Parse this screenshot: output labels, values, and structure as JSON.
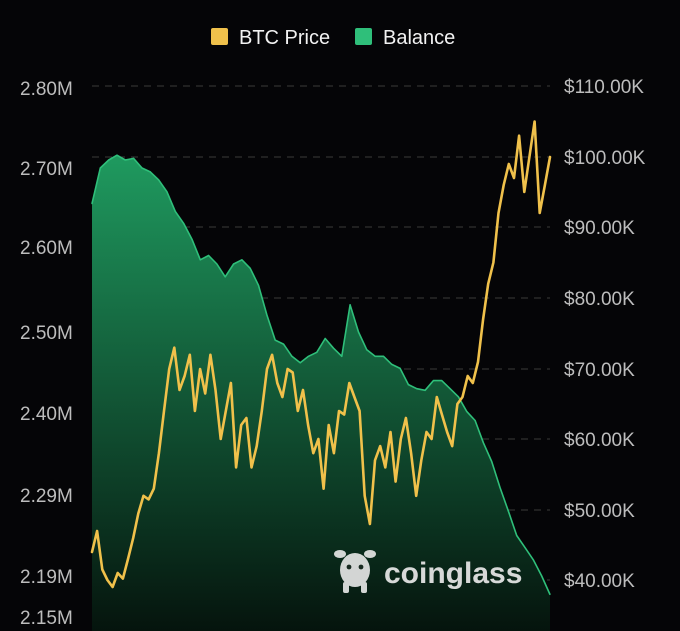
{
  "colors": {
    "background": "#050507",
    "price": "#f0c14b",
    "balance_line": "#2fbf7a",
    "balance_fill_top": "#1f9a5f",
    "balance_fill_bottom": "#05140d",
    "grid": "#3a3a3a",
    "axis_text": "#bdbdbd",
    "legend_text": "#f2f2f2",
    "watermark": "#e9e9e9"
  },
  "watermark": {
    "text": "coinglass",
    "icon": "coinglass-logo-icon"
  },
  "chart_data": {
    "type": "area+line",
    "title": "",
    "legend_position": "top-center",
    "grid": "horizontal-dashed",
    "series": [
      {
        "name": "BTC Price",
        "type": "line",
        "axis": "right",
        "values": [
          44000,
          47000,
          41500,
          40000,
          39000,
          41000,
          40200,
          43000,
          46000,
          49500,
          52000,
          51500,
          53000,
          58000,
          64000,
          70000,
          73000,
          67000,
          69000,
          72000,
          64000,
          70000,
          66500,
          72000,
          67000,
          60000,
          64000,
          68000,
          56000,
          62000,
          63000,
          56000,
          59000,
          64000,
          70000,
          72000,
          68000,
          66000,
          70000,
          69500,
          64000,
          67000,
          62000,
          58000,
          60000,
          53000,
          62000,
          58000,
          64000,
          63500,
          68000,
          66000,
          64000,
          52000,
          48000,
          57000,
          59000,
          56000,
          61000,
          54000,
          60000,
          63000,
          58000,
          52000,
          57000,
          61000,
          60000,
          66000,
          63500,
          61000,
          59000,
          65000,
          66000,
          69000,
          68000,
          71000,
          77000,
          82000,
          85000,
          92000,
          96000,
          99000,
          97000,
          103000,
          95000,
          100000,
          105000,
          92000,
          96000,
          100000
        ]
      },
      {
        "name": "Balance",
        "type": "area",
        "axis": "left",
        "values": [
          2655000,
          2700000,
          2710000,
          2716000,
          2710000,
          2712000,
          2700000,
          2695000,
          2685000,
          2670000,
          2645000,
          2630000,
          2610000,
          2585000,
          2590000,
          2580000,
          2565000,
          2580000,
          2585000,
          2575000,
          2555000,
          2520000,
          2490000,
          2485000,
          2470000,
          2462000,
          2470000,
          2475000,
          2492000,
          2480000,
          2470000,
          2532000,
          2500000,
          2478000,
          2470000,
          2470000,
          2460000,
          2455000,
          2435000,
          2430000,
          2428000,
          2440000,
          2440000,
          2430000,
          2420000,
          2402000,
          2390000,
          2360000,
          2335000,
          2300000,
          2270000,
          2240000,
          2225000,
          2210000,
          2190000,
          2172000
        ]
      }
    ],
    "y_left": {
      "ticks": [
        "2.80M",
        "2.70M",
        "2.60M",
        "2.50M",
        "2.40M",
        "2.29M",
        "2.19M",
        "2.15M"
      ],
      "tick_values": [
        2800000,
        2700000,
        2600000,
        2500000,
        2400000,
        2290000,
        2190000,
        2150000
      ]
    },
    "y_right": {
      "ticks": [
        "$110.00K",
        "$100.00K",
        "$90.00K",
        "$80.00K",
        "$70.00K",
        "$60.00K",
        "$50.00K",
        "$40.00K"
      ],
      "tick_values": [
        110000,
        100000,
        90000,
        80000,
        70000,
        60000,
        50000,
        40000
      ]
    }
  }
}
